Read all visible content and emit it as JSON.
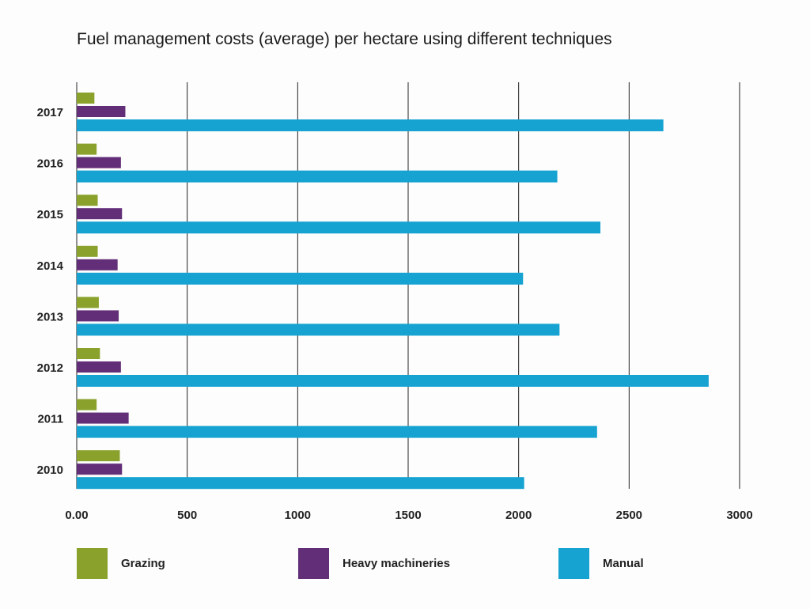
{
  "chart_data": {
    "type": "bar",
    "orientation": "horizontal",
    "title": "Fuel management costs (average) per hectare using different techniques",
    "categories": [
      "2017",
      "2016",
      "2015",
      "2014",
      "2013",
      "2012",
      "2011",
      "2010"
    ],
    "series": [
      {
        "name": "Grazing",
        "color": "#8aa22c",
        "values": [
          80,
          90,
          95,
          95,
          100,
          105,
          90,
          195
        ]
      },
      {
        "name": "Heavy machineries",
        "color": "#622e77",
        "values": [
          220,
          200,
          205,
          185,
          190,
          200,
          235,
          205
        ]
      },
      {
        "name": "Manual",
        "color": "#16a3d1",
        "values": [
          2655,
          2175,
          2370,
          2020,
          2185,
          2860,
          2355,
          2025
        ]
      }
    ],
    "x_ticks": [
      "0.00",
      "500",
      "1000",
      "1500",
      "2000",
      "2500",
      "3000"
    ],
    "xlim": [
      0,
      3000
    ],
    "grid": "vertical",
    "legend_position": "bottom"
  }
}
